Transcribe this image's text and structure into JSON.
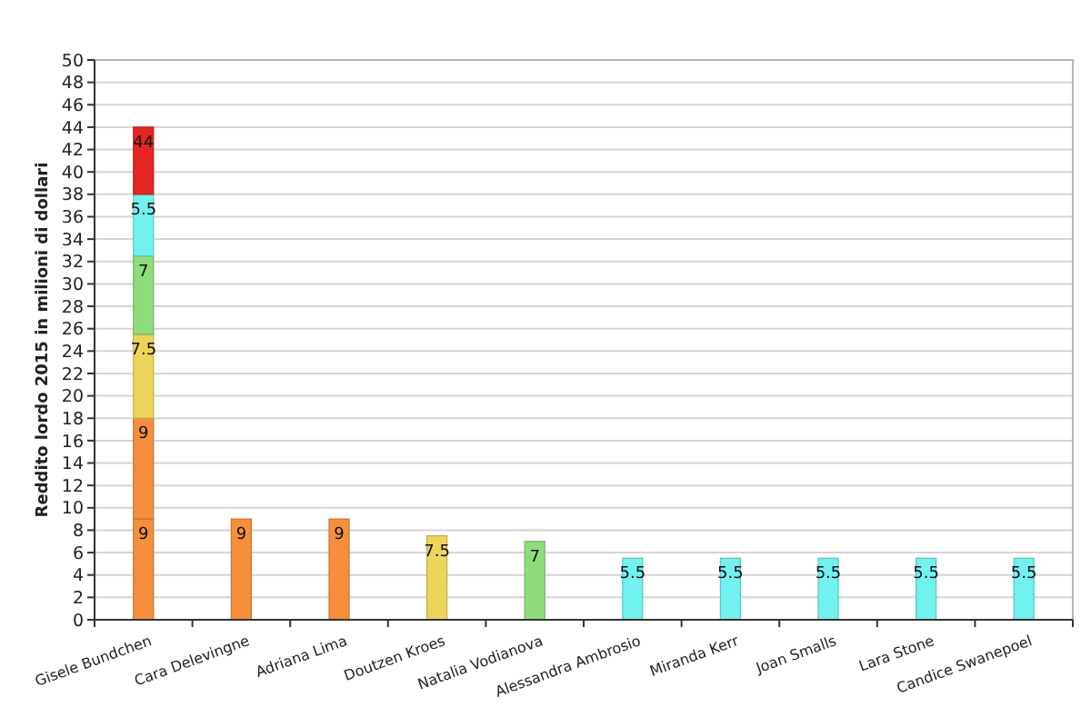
{
  "chart_data": {
    "type": "bar",
    "stacked": true,
    "ylabel": "Reddito lordo 2015 in milioni di dollari",
    "categories": [
      "Gisele Bundchen",
      "Cara Delevingne",
      "Adriana Lima",
      "Doutzen Kroes",
      "Natalia Vodianova",
      "Alessandra Ambrosio",
      "Miranda Kerr",
      "Joan Smalls",
      "Lara Stone",
      "Candice Swanepoel"
    ],
    "ylim": [
      0,
      50
    ],
    "yticks": [
      0,
      2,
      4,
      6,
      8,
      10,
      12,
      14,
      16,
      18,
      20,
      22,
      24,
      26,
      28,
      30,
      32,
      34,
      36,
      38,
      40,
      42,
      44,
      46,
      48,
      50
    ],
    "grid": "y",
    "series": [
      {
        "colors": [
          "#f58f3b",
          "#f58f3b",
          "#f58f3b",
          "#ecd55a",
          "#8fdc7c",
          "#72f2ef",
          "#72f2ef",
          "#72f2ef",
          "#72f2ef",
          "#72f2ef"
        ],
        "values": [
          9,
          9,
          9,
          7.5,
          7,
          5.5,
          5.5,
          5.5,
          5.5,
          5.5
        ],
        "value_labels": [
          "9",
          "9",
          "9",
          "7.5",
          "7",
          "5.5",
          "5.5",
          "5.5",
          "5.5",
          "5.5"
        ]
      },
      {
        "color": "#f58f3b",
        "values": [
          9,
          null,
          null,
          null,
          null,
          null,
          null,
          null,
          null,
          null
        ],
        "value_labels": [
          "9",
          null,
          null,
          null,
          null,
          null,
          null,
          null,
          null,
          null
        ]
      },
      {
        "color": "#ecd55a",
        "values": [
          7.5,
          null,
          null,
          null,
          null,
          null,
          null,
          null,
          null,
          null
        ],
        "value_labels": [
          "7.5",
          null,
          null,
          null,
          null,
          null,
          null,
          null,
          null,
          null
        ]
      },
      {
        "color": "#8fdc7c",
        "values": [
          7,
          null,
          null,
          null,
          null,
          null,
          null,
          null,
          null,
          null
        ],
        "value_labels": [
          "7",
          null,
          null,
          null,
          null,
          null,
          null,
          null,
          null,
          null
        ]
      },
      {
        "color": "#72f2ef",
        "values": [
          5.5,
          null,
          null,
          null,
          null,
          null,
          null,
          null,
          null,
          null
        ],
        "value_labels": [
          "5.5",
          null,
          null,
          null,
          null,
          null,
          null,
          null,
          null,
          null
        ]
      },
      {
        "color": "#e52521",
        "values": [
          6,
          null,
          null,
          null,
          null,
          null,
          null,
          null,
          null,
          null
        ]
      }
    ],
    "totals": [
      "44",
      null,
      null,
      null,
      null,
      null,
      null,
      null,
      null,
      null
    ]
  }
}
